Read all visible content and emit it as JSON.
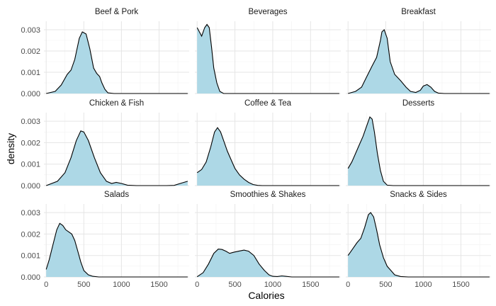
{
  "chart_data": {
    "type": "area",
    "title": "",
    "xlabel": "Calories",
    "ylabel": "density",
    "xlim": [
      -30,
      1900
    ],
    "ylim": [
      0,
      0.0034
    ],
    "x_ticks": [
      0,
      500,
      1000,
      1500
    ],
    "x_tick_labels": [
      "0",
      "500",
      "1000",
      "1500"
    ],
    "y_ticks": [
      0,
      0.001,
      0.002,
      0.003
    ],
    "y_tick_labels": [
      "0.000",
      "0.001",
      "0.002",
      "0.003"
    ],
    "grid": true,
    "fill_color": "#add8e6",
    "line_color": "#000000",
    "panels": [
      {
        "label": "Beef & Pork",
        "points": [
          [
            0,
            0
          ],
          [
            120,
            0.0001
          ],
          [
            200,
            0.0004
          ],
          [
            280,
            0.0009
          ],
          [
            330,
            0.0011
          ],
          [
            380,
            0.0016
          ],
          [
            440,
            0.0026
          ],
          [
            480,
            0.0029
          ],
          [
            530,
            0.0028
          ],
          [
            580,
            0.0021
          ],
          [
            630,
            0.0012
          ],
          [
            670,
            0.00095
          ],
          [
            710,
            0.0008
          ],
          [
            740,
            0.0005
          ],
          [
            780,
            0.0002
          ],
          [
            820,
            3e-05
          ],
          [
            900,
            0
          ],
          [
            1880,
            0
          ]
        ]
      },
      {
        "label": "Beverages",
        "points": [
          [
            0,
            0.0031
          ],
          [
            60,
            0.0027
          ],
          [
            100,
            0.0031
          ],
          [
            130,
            0.00325
          ],
          [
            160,
            0.0031
          ],
          [
            190,
            0.0022
          ],
          [
            220,
            0.0012
          ],
          [
            260,
            0.0005
          ],
          [
            300,
            0.0001
          ],
          [
            350,
            0
          ],
          [
            1880,
            0
          ]
        ]
      },
      {
        "label": "Breakfast",
        "points": [
          [
            0,
            0
          ],
          [
            100,
            0.0001
          ],
          [
            180,
            0.0003
          ],
          [
            250,
            0.0008
          ],
          [
            320,
            0.0013
          ],
          [
            380,
            0.0017
          ],
          [
            430,
            0.0025
          ],
          [
            450,
            0.0029
          ],
          [
            480,
            0.003
          ],
          [
            520,
            0.0026
          ],
          [
            560,
            0.0015
          ],
          [
            620,
            0.0009
          ],
          [
            700,
            0.0006
          ],
          [
            770,
            0.0003
          ],
          [
            830,
            0.0001
          ],
          [
            900,
            5e-05
          ],
          [
            960,
            0.00015
          ],
          [
            1000,
            0.00035
          ],
          [
            1050,
            0.00042
          ],
          [
            1100,
            0.0003
          ],
          [
            1150,
            0.0001
          ],
          [
            1200,
            2e-05
          ],
          [
            1280,
            0
          ],
          [
            1880,
            0
          ]
        ]
      },
      {
        "label": "Chicken & Fish",
        "points": [
          [
            0,
            0
          ],
          [
            150,
            0.0002
          ],
          [
            250,
            0.0006
          ],
          [
            330,
            0.0013
          ],
          [
            400,
            0.0021
          ],
          [
            460,
            0.00255
          ],
          [
            500,
            0.0025
          ],
          [
            560,
            0.0021
          ],
          [
            640,
            0.0013
          ],
          [
            720,
            0.0006
          ],
          [
            800,
            0.0002
          ],
          [
            870,
            0.0001
          ],
          [
            930,
            0.00015
          ],
          [
            1000,
            0.0001
          ],
          [
            1080,
            2e-05
          ],
          [
            1200,
            0
          ],
          [
            1600,
            0
          ],
          [
            1700,
            1e-05
          ],
          [
            1800,
            0.00012
          ],
          [
            1880,
            0.0002
          ]
        ]
      },
      {
        "label": "Coffee & Tea",
        "points": [
          [
            0,
            0.0006
          ],
          [
            60,
            0.00075
          ],
          [
            120,
            0.0011
          ],
          [
            180,
            0.0018
          ],
          [
            230,
            0.0025
          ],
          [
            270,
            0.0027
          ],
          [
            310,
            0.0025
          ],
          [
            350,
            0.0021
          ],
          [
            400,
            0.0016
          ],
          [
            450,
            0.0012
          ],
          [
            500,
            0.0008
          ],
          [
            560,
            0.0005
          ],
          [
            620,
            0.0003
          ],
          [
            680,
            0.00015
          ],
          [
            740,
            5e-05
          ],
          [
            800,
            1e-05
          ],
          [
            860,
            0
          ],
          [
            1880,
            0
          ]
        ]
      },
      {
        "label": "Desserts",
        "points": [
          [
            0,
            0.0008
          ],
          [
            50,
            0.0011
          ],
          [
            100,
            0.0015
          ],
          [
            150,
            0.0019
          ],
          [
            200,
            0.0023
          ],
          [
            250,
            0.0028
          ],
          [
            290,
            0.0032
          ],
          [
            320,
            0.0031
          ],
          [
            350,
            0.0025
          ],
          [
            390,
            0.0015
          ],
          [
            430,
            0.0007
          ],
          [
            470,
            0.0002
          ],
          [
            520,
            2e-05
          ],
          [
            600,
            0
          ],
          [
            1880,
            0
          ]
        ]
      },
      {
        "label": "Salads",
        "points": [
          [
            0,
            0.00035
          ],
          [
            40,
            0.0008
          ],
          [
            90,
            0.0015
          ],
          [
            140,
            0.0022
          ],
          [
            180,
            0.0025
          ],
          [
            220,
            0.0024
          ],
          [
            260,
            0.0022
          ],
          [
            300,
            0.0021
          ],
          [
            340,
            0.002
          ],
          [
            380,
            0.0017
          ],
          [
            420,
            0.0012
          ],
          [
            460,
            0.0007
          ],
          [
            500,
            0.0003
          ],
          [
            560,
            0.0001
          ],
          [
            620,
            3e-05
          ],
          [
            700,
            0
          ],
          [
            1880,
            0
          ]
        ]
      },
      {
        "label": "Smoothies & Shakes",
        "points": [
          [
            0,
            1e-05
          ],
          [
            80,
            0.0002
          ],
          [
            150,
            0.0006
          ],
          [
            220,
            0.0011
          ],
          [
            280,
            0.0013
          ],
          [
            330,
            0.00128
          ],
          [
            380,
            0.0012
          ],
          [
            430,
            0.0011
          ],
          [
            480,
            0.00115
          ],
          [
            550,
            0.0012
          ],
          [
            620,
            0.00125
          ],
          [
            680,
            0.0012
          ],
          [
            750,
            0.001
          ],
          [
            820,
            0.0006
          ],
          [
            890,
            0.0003
          ],
          [
            950,
            0.0001
          ],
          [
            1000,
            3e-05
          ],
          [
            1060,
            2e-05
          ],
          [
            1120,
            5e-05
          ],
          [
            1170,
            3e-05
          ],
          [
            1250,
            0
          ],
          [
            1880,
            0
          ]
        ]
      },
      {
        "label": "Snacks & Sides",
        "points": [
          [
            0,
            0.001
          ],
          [
            60,
            0.0013
          ],
          [
            120,
            0.0016
          ],
          [
            170,
            0.0018
          ],
          [
            220,
            0.0023
          ],
          [
            270,
            0.0029
          ],
          [
            300,
            0.003
          ],
          [
            340,
            0.0028
          ],
          [
            380,
            0.0022
          ],
          [
            420,
            0.0015
          ],
          [
            470,
            0.0009
          ],
          [
            520,
            0.0005
          ],
          [
            570,
            0.0003
          ],
          [
            620,
            0.0001
          ],
          [
            700,
            2e-05
          ],
          [
            800,
            0
          ],
          [
            1880,
            0
          ]
        ]
      }
    ]
  }
}
